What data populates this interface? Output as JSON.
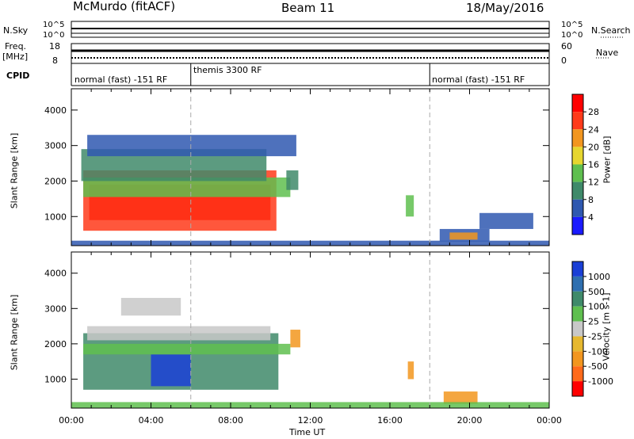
{
  "header": {
    "station": "McMurdo (fitACF)",
    "beam": "Beam 11",
    "date": "18/May/2016"
  },
  "sidebar": {
    "nsky_label": "N.Sky",
    "freq_label": "Freq.",
    "freq_unit": "[MHz]",
    "cpid_label": "CPID",
    "nsearch_label": "N.Search",
    "nave_label": "Nave",
    "nsky_hi": "10^5",
    "nsky_lo": "10^0",
    "nsearch_hi": "10^5",
    "nsearch_lo": "10^0",
    "freq_hi": "18",
    "freq_lo": "8",
    "nave_hi": "60",
    "nave_lo": "0"
  },
  "cpid_segments": [
    {
      "label": "normal (fast) -151 RF",
      "start_hr": 0,
      "end_hr": 6
    },
    {
      "label": "themis 3300 RF",
      "start_hr": 6,
      "end_hr": 18
    },
    {
      "label": "normal (fast) -151 RF",
      "start_hr": 18,
      "end_hr": 24
    }
  ],
  "chart_data": [
    {
      "type": "heatmap",
      "panel": "power",
      "xlabel": "Time UT",
      "ylabel": "Slant Range [km]",
      "xlim_hr": [
        0,
        24
      ],
      "ylim": [
        180,
        4600
      ],
      "x_ticks": [
        "00:00",
        "04:00",
        "08:00",
        "12:00",
        "16:00",
        "20:00",
        "00:00"
      ],
      "y_ticks": [
        1000,
        2000,
        3000,
        4000
      ],
      "colorbar_label": "Power [dB]",
      "colorbar_ticks": [
        "4",
        "8",
        "12",
        "16",
        "20",
        "24",
        "28"
      ],
      "colorbar_colors": [
        "#1a1aff",
        "#2f58b0",
        "#3f8a6a",
        "#5fbf4f",
        "#e6d62f",
        "#f2961f",
        "#ff3a1a",
        "#ff0000"
      ],
      "regions": [
        {
          "t0": 0.6,
          "t1": 10.3,
          "r0": 600,
          "r1": 2300,
          "color": "#ff3a1a"
        },
        {
          "t0": 0.9,
          "t1": 10.0,
          "r0": 900,
          "r1": 1900,
          "color": "#ff2a10"
        },
        {
          "t0": 0.6,
          "t1": 11.0,
          "r0": 1550,
          "r1": 2100,
          "color": "#5fbf4f"
        },
        {
          "t0": 0.5,
          "t1": 9.8,
          "r0": 2000,
          "r1": 2900,
          "color": "#3f8a6a"
        },
        {
          "t0": 0.8,
          "t1": 11.3,
          "r0": 2700,
          "r1": 3300,
          "color": "#2f58b0"
        },
        {
          "t0": 10.8,
          "t1": 11.4,
          "r0": 1750,
          "r1": 2300,
          "color": "#3f8a6a"
        },
        {
          "t0": 16.8,
          "t1": 17.2,
          "r0": 1000,
          "r1": 1600,
          "color": "#5fbf4f"
        },
        {
          "t0": 18.5,
          "t1": 21.0,
          "r0": 300,
          "r1": 650,
          "color": "#2f58b0"
        },
        {
          "t0": 19.0,
          "t1": 20.4,
          "r0": 350,
          "r1": 550,
          "color": "#f2961f"
        },
        {
          "t0": 20.5,
          "t1": 23.2,
          "r0": 650,
          "r1": 1100,
          "color": "#2f58b0"
        },
        {
          "t0": 0.0,
          "t1": 24.0,
          "r0": 180,
          "r1": 320,
          "color": "#2f58b0"
        }
      ]
    },
    {
      "type": "heatmap",
      "panel": "velocity",
      "xlabel": "Time UT",
      "ylabel": "Slant Range [km]",
      "xlim_hr": [
        0,
        24
      ],
      "ylim": [
        180,
        4600
      ],
      "x_ticks": [
        "00:00",
        "04:00",
        "08:00",
        "12:00",
        "16:00",
        "20:00",
        "00:00"
      ],
      "y_ticks": [
        1000,
        2000,
        3000,
        4000
      ],
      "colorbar_label": "Velocity [m s-1]",
      "colorbar_ticks": [
        "1000",
        "500",
        "100",
        "25",
        "-25",
        "-100",
        "-500",
        "-1000"
      ],
      "colorbar_colors": [
        "#1a3fd6",
        "#2f6fb0",
        "#3f8a6a",
        "#5fbf4f",
        "#c8c8c8",
        "#e6b82f",
        "#f2961f",
        "#ff6a1a",
        "#ff0000"
      ],
      "regions": [
        {
          "t0": 0.6,
          "t1": 10.4,
          "r0": 700,
          "r1": 2300,
          "color": "#3f8a6a"
        },
        {
          "t0": 4.0,
          "t1": 6.0,
          "r0": 800,
          "r1": 1700,
          "color": "#1a3fd6"
        },
        {
          "t0": 0.8,
          "t1": 10.0,
          "r0": 2100,
          "r1": 2500,
          "color": "#c8c8c8"
        },
        {
          "t0": 2.5,
          "t1": 5.5,
          "r0": 2800,
          "r1": 3300,
          "color": "#c8c8c8"
        },
        {
          "t0": 0.6,
          "t1": 11.0,
          "r0": 1700,
          "r1": 2000,
          "color": "#5fbf4f"
        },
        {
          "t0": 11.0,
          "t1": 11.5,
          "r0": 1900,
          "r1": 2400,
          "color": "#f2961f"
        },
        {
          "t0": 16.9,
          "t1": 17.2,
          "r0": 1000,
          "r1": 1500,
          "color": "#f2961f"
        },
        {
          "t0": 18.7,
          "t1": 20.4,
          "r0": 300,
          "r1": 650,
          "color": "#f2961f"
        },
        {
          "t0": 0.0,
          "t1": 24.0,
          "r0": 180,
          "r1": 350,
          "color": "#5fbf4f"
        }
      ]
    }
  ]
}
